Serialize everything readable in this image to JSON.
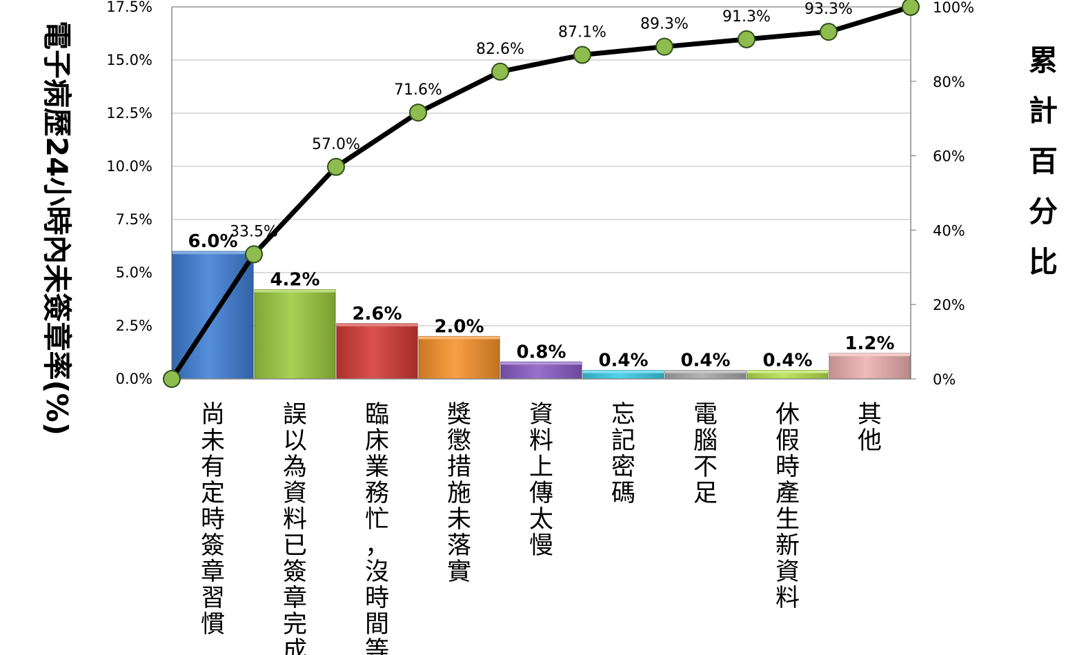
{
  "chart_data": {
    "type": "bar",
    "subtype": "pareto",
    "title": "",
    "ylabel": "電子病歷24小時內未簽章率(%)",
    "y2label": "累計百分比",
    "ylim": [
      0,
      17.5
    ],
    "y2lim": [
      0,
      100
    ],
    "yticks": [
      "0.0%",
      "2.5%",
      "5.0%",
      "7.5%",
      "10.0%",
      "12.5%",
      "15.0%",
      "17.5%"
    ],
    "y2ticks": [
      "0%",
      "20%",
      "40%",
      "60%",
      "80%",
      "100%"
    ],
    "grid": true,
    "categories": [
      "尚未有定時簽章習慣",
      "誤以為資料已簽章完成",
      "臨床業務忙，沒時間等",
      "獎懲措施未落實",
      "資料上傳太慢",
      "忘記密碼",
      "電腦不足",
      "休假時產生新資料",
      "其他"
    ],
    "values": [
      6.0,
      4.2,
      2.6,
      2.0,
      0.8,
      0.4,
      0.4,
      0.4,
      1.2
    ],
    "value_labels": [
      "6.0%",
      "4.2%",
      "2.6%",
      "2.0%",
      "0.8%",
      "0.4%",
      "0.4%",
      "0.4%",
      "1.2%"
    ],
    "bar_colors": [
      "#3e7fd6",
      "#9ccb3f",
      "#d43a35",
      "#f7922a",
      "#8a5cc4",
      "#3ccde8",
      "#a9a9a9",
      "#b7e04f",
      "#efb0b0"
    ],
    "cumulative": [
      0,
      33.5,
      57.0,
      71.6,
      82.6,
      87.1,
      89.3,
      91.3,
      93.3,
      100
    ],
    "cumulative_labels": [
      "",
      "33.5%",
      "57.0%",
      "71.6%",
      "82.6%",
      "87.1%",
      "89.3%",
      "91.3%",
      "93.3%",
      ""
    ],
    "line_color": "#000000",
    "marker_color": "#8fbc4f"
  }
}
